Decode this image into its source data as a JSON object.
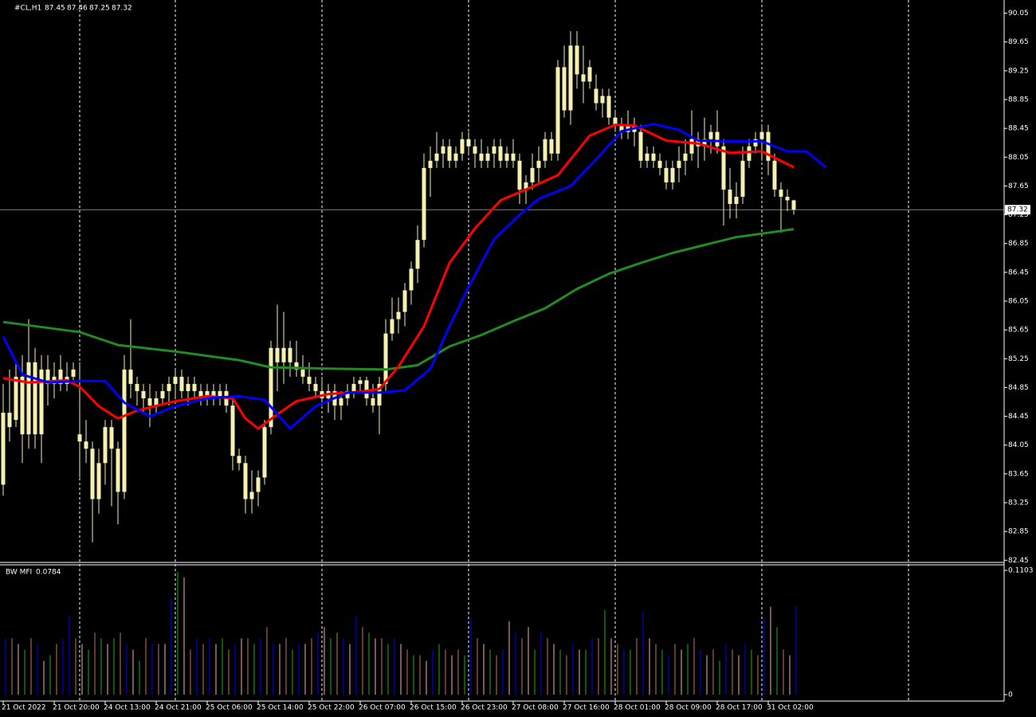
{
  "chart_data": {
    "type": "candlestick",
    "symbol": "#CL,H1",
    "xlim": [
      -0.5,
      157
    ],
    "ylim": [
      82.42,
      90.2
    ],
    "yticks": [
      90.05,
      89.65,
      89.25,
      88.85,
      88.45,
      88.05,
      87.65,
      87.25,
      86.85,
      86.45,
      86.05,
      85.65,
      85.25,
      84.85,
      84.45,
      84.05,
      83.65,
      83.25,
      82.85,
      82.45
    ],
    "xticks": [
      {
        "value": 0,
        "label": "21 Oct 2022"
      },
      {
        "value": 8,
        "label": "21 Oct 20:00"
      },
      {
        "value": 16,
        "label": "24 Oct 13:00"
      },
      {
        "value": 24,
        "label": "24 Oct 21:00"
      },
      {
        "value": 32,
        "label": "25 Oct 06:00"
      },
      {
        "value": 40,
        "label": "25 Oct 14:00"
      },
      {
        "value": 48,
        "label": "25 Oct 22:00"
      },
      {
        "value": 56,
        "label": "26 Oct 07:00"
      },
      {
        "value": 64,
        "label": "26 Oct 15:00"
      },
      {
        "value": 72,
        "label": "26 Oct 23:00"
      },
      {
        "value": 80,
        "label": "27 Oct 08:00"
      },
      {
        "value": 88,
        "label": "27 Oct 16:00"
      },
      {
        "value": 96,
        "label": "28 Oct 01:00"
      },
      {
        "value": 104,
        "label": "28 Oct 09:00"
      },
      {
        "value": 112,
        "label": "28 Oct 17:00"
      },
      {
        "value": 120,
        "label": "31 Oct 02:00"
      }
    ],
    "xgrid": [
      12,
      27,
      50,
      73,
      96,
      119,
      142
    ],
    "candle_color": "#f5f0b0",
    "ohlc": [
      [
        83.5,
        84.9,
        83.35,
        84.5
      ],
      [
        84.5,
        85.1,
        84.1,
        84.3
      ],
      [
        84.4,
        85.2,
        84.3,
        85.0
      ],
      [
        85.0,
        85.3,
        83.8,
        84.2
      ],
      [
        84.2,
        85.8,
        84.0,
        85.2
      ],
      [
        85.2,
        85.4,
        84.0,
        84.2
      ],
      [
        84.2,
        85.3,
        83.8,
        85.1
      ],
      [
        85.1,
        85.3,
        84.6,
        84.9
      ],
      [
        85.0,
        85.2,
        84.7,
        84.9
      ],
      [
        84.9,
        85.3,
        84.8,
        85.1
      ],
      [
        84.9,
        85.2,
        84.8,
        85.0
      ],
      [
        85.0,
        85.2,
        84.9,
        85.1
      ],
      [
        84.2,
        85.2,
        83.6,
        84.1
      ],
      [
        84.1,
        84.4,
        83.8,
        84.0
      ],
      [
        84.0,
        84.1,
        82.7,
        83.3
      ],
      [
        83.3,
        84.0,
        83.1,
        83.8
      ],
      [
        83.8,
        84.4,
        83.5,
        84.3
      ],
      [
        84.3,
        84.4,
        83.2,
        84.0
      ],
      [
        84.0,
        84.1,
        82.95,
        83.4
      ],
      [
        83.4,
        85.3,
        83.3,
        85.1
      ],
      [
        85.1,
        85.8,
        84.7,
        84.9
      ],
      [
        84.9,
        85.0,
        84.6,
        84.8
      ],
      [
        84.8,
        84.9,
        84.5,
        84.7
      ],
      [
        84.7,
        84.9,
        84.3,
        84.6
      ],
      [
        84.6,
        84.8,
        84.5,
        84.7
      ],
      [
        84.7,
        84.9,
        84.6,
        84.8
      ],
      [
        84.8,
        85.0,
        84.6,
        84.9
      ],
      [
        84.9,
        85.1,
        84.7,
        85.0
      ],
      [
        85.0,
        85.1,
        84.7,
        84.8
      ],
      [
        84.8,
        85.0,
        84.6,
        84.9
      ],
      [
        84.9,
        85.0,
        84.7,
        84.8
      ],
      [
        84.8,
        84.9,
        84.6,
        84.7
      ],
      [
        84.7,
        84.9,
        84.6,
        84.8
      ],
      [
        84.8,
        84.9,
        84.6,
        84.7
      ],
      [
        84.7,
        84.9,
        84.6,
        84.8
      ],
      [
        84.8,
        84.9,
        84.5,
        84.6
      ],
      [
        84.6,
        84.7,
        83.7,
        83.9
      ],
      [
        83.9,
        84.0,
        83.7,
        83.8
      ],
      [
        83.8,
        83.9,
        83.1,
        83.3
      ],
      [
        83.3,
        83.7,
        83.1,
        83.4
      ],
      [
        83.4,
        83.7,
        83.2,
        83.6
      ],
      [
        83.6,
        84.4,
        83.5,
        84.3
      ],
      [
        84.3,
        85.5,
        84.2,
        85.4
      ],
      [
        85.4,
        86.0,
        84.8,
        85.2
      ],
      [
        85.2,
        85.9,
        84.9,
        85.4
      ],
      [
        85.4,
        85.5,
        85.0,
        85.2
      ],
      [
        85.2,
        85.5,
        85.0,
        85.1
      ],
      [
        85.1,
        85.3,
        84.9,
        85.0
      ],
      [
        85.0,
        85.2,
        84.8,
        84.9
      ],
      [
        84.9,
        85.0,
        84.7,
        84.8
      ],
      [
        84.8,
        85.0,
        84.6,
        84.7
      ],
      [
        84.7,
        84.9,
        84.5,
        84.8
      ],
      [
        84.8,
        84.9,
        84.4,
        84.6
      ],
      [
        84.6,
        84.8,
        84.4,
        84.7
      ],
      [
        84.7,
        84.9,
        84.6,
        84.8
      ],
      [
        84.8,
        85.0,
        84.7,
        84.9
      ],
      [
        84.9,
        85.0,
        84.8,
        84.95
      ],
      [
        84.95,
        85.0,
        84.6,
        84.7
      ],
      [
        84.7,
        84.9,
        84.5,
        84.6
      ],
      [
        84.6,
        85.0,
        84.2,
        84.9
      ],
      [
        84.9,
        85.8,
        84.8,
        85.6
      ],
      [
        85.6,
        86.1,
        85.5,
        85.8
      ],
      [
        85.8,
        86.1,
        85.6,
        85.9
      ],
      [
        85.9,
        86.3,
        85.7,
        86.2
      ],
      [
        86.2,
        86.6,
        86.0,
        86.5
      ],
      [
        86.5,
        87.1,
        86.3,
        86.9
      ],
      [
        86.9,
        88.1,
        86.8,
        87.9
      ],
      [
        87.9,
        88.2,
        87.5,
        88.0
      ],
      [
        88.0,
        88.4,
        87.9,
        88.1
      ],
      [
        88.1,
        88.3,
        87.9,
        88.2
      ],
      [
        88.2,
        88.3,
        87.9,
        88.0
      ],
      [
        88.0,
        88.2,
        87.9,
        88.1
      ],
      [
        88.1,
        88.4,
        88.0,
        88.3
      ],
      [
        88.3,
        88.4,
        88.1,
        88.2
      ],
      [
        88.2,
        88.3,
        87.9,
        88.1
      ],
      [
        88.1,
        88.3,
        87.9,
        88.0
      ],
      [
        88.0,
        88.2,
        87.9,
        88.1
      ],
      [
        88.1,
        88.3,
        87.9,
        88.2
      ],
      [
        88.2,
        88.3,
        87.9,
        88.0
      ],
      [
        88.0,
        88.2,
        87.9,
        88.1
      ],
      [
        88.1,
        88.3,
        87.9,
        88.0
      ],
      [
        88.0,
        88.1,
        87.4,
        87.6
      ],
      [
        87.6,
        87.8,
        87.4,
        87.7
      ],
      [
        87.7,
        88.1,
        87.6,
        87.9
      ],
      [
        87.9,
        88.2,
        87.7,
        88.0
      ],
      [
        88.0,
        88.4,
        87.9,
        88.3
      ],
      [
        88.3,
        88.4,
        88.0,
        88.1
      ],
      [
        88.1,
        89.4,
        88.0,
        89.3
      ],
      [
        89.3,
        89.6,
        88.6,
        88.7
      ],
      [
        88.7,
        89.8,
        88.5,
        89.6
      ],
      [
        89.6,
        89.8,
        89.0,
        89.2
      ],
      [
        89.2,
        89.6,
        88.8,
        89.1
      ],
      [
        89.1,
        89.4,
        89.0,
        89.3
      ],
      [
        89.0,
        89.2,
        88.7,
        88.8
      ],
      [
        88.8,
        89.0,
        88.6,
        88.9
      ],
      [
        88.9,
        89.0,
        88.5,
        88.6
      ],
      [
        88.6,
        88.7,
        88.4,
        88.5
      ],
      [
        88.5,
        88.6,
        88.3,
        88.4
      ],
      [
        88.4,
        88.7,
        88.3,
        88.5
      ],
      [
        88.5,
        88.6,
        88.2,
        88.4
      ],
      [
        88.4,
        88.5,
        87.9,
        88.0
      ],
      [
        88.0,
        88.2,
        87.9,
        88.1
      ],
      [
        88.1,
        88.2,
        87.9,
        88.0
      ],
      [
        88.0,
        88.1,
        87.8,
        87.9
      ],
      [
        87.9,
        88.0,
        87.6,
        87.7
      ],
      [
        87.7,
        88.0,
        87.6,
        87.9
      ],
      [
        87.9,
        88.2,
        87.7,
        88.0
      ],
      [
        88.0,
        88.3,
        87.8,
        88.1
      ],
      [
        88.1,
        88.7,
        88.0,
        88.3
      ],
      [
        88.3,
        88.4,
        87.9,
        88.2
      ],
      [
        88.2,
        88.6,
        88.0,
        88.3
      ],
      [
        88.3,
        88.5,
        88.1,
        88.4
      ],
      [
        88.4,
        88.7,
        88.1,
        88.2
      ],
      [
        88.2,
        88.3,
        87.1,
        87.6
      ],
      [
        87.6,
        87.9,
        87.2,
        87.4
      ],
      [
        87.4,
        87.7,
        87.2,
        87.5
      ],
      [
        87.5,
        88.2,
        87.4,
        88.0
      ],
      [
        88.0,
        88.3,
        87.9,
        88.2
      ],
      [
        88.2,
        88.4,
        88.1,
        88.3
      ],
      [
        88.3,
        88.5,
        88.0,
        88.4
      ],
      [
        88.4,
        88.5,
        87.8,
        88.0
      ],
      [
        88.0,
        88.1,
        87.5,
        87.6
      ],
      [
        87.6,
        87.7,
        87.0,
        87.5
      ],
      [
        87.5,
        87.6,
        87.3,
        87.45
      ],
      [
        87.45,
        87.46,
        87.25,
        87.32
      ]
    ],
    "lines": [
      {
        "color": "#228b22",
        "x": [
          0,
          12,
          18,
          27,
          37,
          42,
          52,
          60,
          65,
          70,
          75,
          80,
          85,
          90,
          95,
          100,
          105,
          110,
          115,
          120,
          124
        ],
        "values": [
          85.76,
          85.62,
          85.44,
          85.35,
          85.23,
          85.13,
          85.11,
          85.1,
          85.16,
          85.42,
          85.58,
          85.77,
          85.95,
          86.22,
          86.43,
          86.58,
          86.72,
          86.83,
          86.94,
          87.0,
          87.05
        ]
      },
      {
        "color": "#ff0000",
        "x": [
          0,
          4,
          10,
          12,
          15,
          18,
          21,
          27,
          32,
          36,
          38,
          40,
          43,
          46,
          51,
          56,
          59,
          62,
          66,
          70,
          74,
          78,
          82,
          87,
          92,
          96,
          99,
          104,
          109,
          114,
          119,
          124
        ],
        "values": [
          84.98,
          84.92,
          84.95,
          84.86,
          84.59,
          84.42,
          84.53,
          84.66,
          84.73,
          84.7,
          84.42,
          84.28,
          84.48,
          84.66,
          84.76,
          84.79,
          84.83,
          85.14,
          85.7,
          86.58,
          87.06,
          87.45,
          87.6,
          87.8,
          88.35,
          88.5,
          88.49,
          88.28,
          88.24,
          88.11,
          88.13,
          87.91
        ]
      },
      {
        "color": "#0000ff",
        "x": [
          0,
          3,
          7,
          12,
          16,
          19,
          23,
          27,
          32,
          37,
          41,
          43,
          45,
          49,
          54,
          59,
          63,
          67,
          70,
          73,
          77,
          81,
          84,
          89,
          93,
          97,
          102,
          106,
          109,
          114,
          119,
          123,
          126,
          129
        ],
        "values": [
          85.56,
          85.03,
          84.92,
          84.94,
          84.94,
          84.64,
          84.45,
          84.59,
          84.7,
          84.73,
          84.68,
          84.48,
          84.28,
          84.59,
          84.78,
          84.78,
          84.81,
          85.11,
          85.7,
          86.25,
          86.91,
          87.25,
          87.47,
          87.65,
          88.02,
          88.41,
          88.51,
          88.43,
          88.28,
          88.27,
          88.27,
          88.13,
          88.13,
          87.91
        ]
      }
    ],
    "mfi": {
      "name": "BW MFI",
      "ylim": [
        -0.0057,
        0.1145
      ],
      "yticks": [
        0,
        0.1103
      ],
      "values": [
        0.05,
        0.05,
        0.045,
        0.04,
        0.05,
        0.045,
        0.03,
        0.035,
        0.045,
        0.05,
        0.07,
        0.05,
        0.045,
        0.04,
        0.055,
        0.05,
        0.045,
        0.05,
        0.055,
        0.045,
        0.04,
        0.03,
        0.05,
        0.045,
        0.045,
        0.045,
        0.086,
        0.109,
        0.104,
        0.04,
        0.05,
        0.045,
        0.05,
        0.045,
        0.05,
        0.04,
        0.045,
        0.05,
        0.05,
        0.045,
        0.05,
        0.06,
        0.045,
        0.045,
        0.05,
        0.04,
        0.045,
        0.045,
        0.05,
        0.055,
        0.06,
        0.05,
        0.055,
        0.05,
        0.045,
        0.07,
        0.06,
        0.055,
        0.05,
        0.05,
        0.045,
        0.05,
        0.045,
        0.04,
        0.035,
        0.035,
        0.03,
        0.04,
        0.045,
        0.04,
        0.035,
        0.04,
        0.035,
        0.068,
        0.05,
        0.045,
        0.04,
        0.035,
        0.04,
        0.065,
        0.055,
        0.05,
        0.06,
        0.04,
        0.055,
        0.05,
        0.045,
        0.04,
        0.035,
        0.045,
        0.04,
        0.04,
        0.05,
        0.05,
        0.075,
        0.05,
        0.045,
        0.04,
        0.04,
        0.05,
        0.073,
        0.05,
        0.045,
        0.04,
        0.035,
        0.045,
        0.04,
        0.045,
        0.05,
        0.04,
        0.035,
        0.04,
        0.03,
        0.045,
        0.04,
        0.035,
        0.045,
        0.04,
        0.035,
        0.068,
        0.078,
        0.06,
        0.04,
        0.035,
        0.0784
      ],
      "colors": [
        "#0000ff",
        "#c07860",
        "#f0b0b0",
        "#22aa22",
        "#c07860",
        "#0000ff",
        "#f0b0b0",
        "#22aa22",
        "#c07860",
        "#0000ff",
        "#0000ff",
        "#c07860",
        "#f0b0b0",
        "#22aa22",
        "#c07860",
        "#22aa22",
        "#f0b0b0",
        "#22aa22",
        "#c07860",
        "#0000ff",
        "#f0b0b0",
        "#22aa22",
        "#c07860",
        "#0000ff",
        "#c07860",
        "#f0b0b0",
        "#0000ff",
        "#22aa22",
        "#f0b0b0",
        "#c07860",
        "#0000ff",
        "#c07860",
        "#0000ff",
        "#f0b0b0",
        "#22aa22",
        "#c07860",
        "#0000ff",
        "#f0b0b0",
        "#c07860",
        "#22aa22",
        "#0000ff",
        "#c07860",
        "#0000ff",
        "#f0b0b0",
        "#c07860",
        "#22aa22",
        "#0000ff",
        "#f0b0b0",
        "#c07860",
        "#0000ff",
        "#f0b0b0",
        "#22aa22",
        "#c07860",
        "#0000ff",
        "#f0b0b0",
        "#0000ff",
        "#c07860",
        "#22aa22",
        "#f0b0b0",
        "#c07860",
        "#22aa22",
        "#0000ff",
        "#f0b0b0",
        "#c07860",
        "#22aa22",
        "#c07860",
        "#f0b0b0",
        "#0000ff",
        "#22aa22",
        "#c07860",
        "#f0b0b0",
        "#c07860",
        "#22aa22",
        "#0000ff",
        "#c07860",
        "#f0b0b0",
        "#22aa22",
        "#c07860",
        "#0000ff",
        "#f0b0b0",
        "#0000ff",
        "#c07860",
        "#f0b0b0",
        "#22aa22",
        "#0000ff",
        "#c07860",
        "#f0b0b0",
        "#22aa22",
        "#c07860",
        "#0000ff",
        "#f0b0b0",
        "#22aa22",
        "#0000ff",
        "#c07860",
        "#22aa22",
        "#f0b0b0",
        "#c07860",
        "#0000ff",
        "#22aa22",
        "#c07860",
        "#0000ff",
        "#f0b0b0",
        "#c07860",
        "#22aa22",
        "#0000ff",
        "#c07860",
        "#f0b0b0",
        "#22aa22",
        "#c07860",
        "#0000ff",
        "#f0b0b0",
        "#c07860",
        "#22aa22",
        "#0000ff",
        "#c07860",
        "#f0b0b0",
        "#0000ff",
        "#22aa22",
        "#c07860",
        "#0000ff",
        "#f0b0b0",
        "#22aa22",
        "#c07860",
        "#f0b0b0",
        "#0000ff"
      ]
    }
  }
}
